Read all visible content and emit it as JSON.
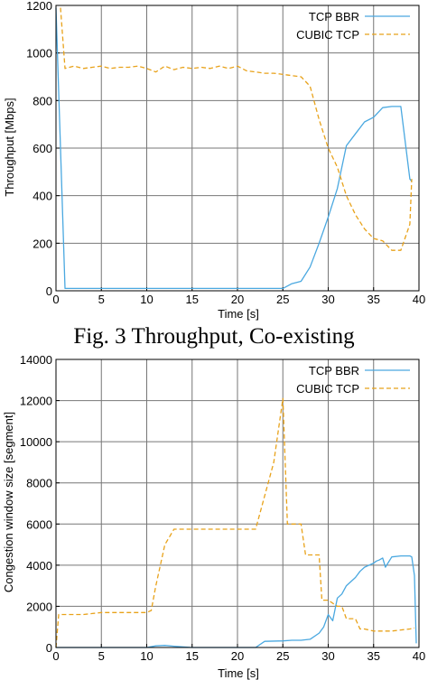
{
  "caption": "Fig. 3 Throughput, Co-existing",
  "colors": {
    "bbr": "#4aa8e0",
    "cubic": "#e8a21a",
    "grid": "#777777"
  },
  "chart_data": [
    {
      "type": "line",
      "title": "",
      "xlabel": "Time [s]",
      "ylabel": "Throughput [Mbps]",
      "xlim": [
        0,
        40
      ],
      "ylim": [
        0,
        1200
      ],
      "xticks": [
        0,
        5,
        10,
        15,
        20,
        25,
        30,
        35,
        40
      ],
      "yticks": [
        0,
        200,
        400,
        600,
        800,
        1000,
        1200
      ],
      "grid": true,
      "legend_position": "top-right",
      "series": [
        {
          "name": "TCP BBR",
          "style": "solid",
          "x": [
            0,
            1,
            2,
            5,
            10,
            15,
            20,
            24.5,
            25,
            26,
            27,
            28,
            29,
            30,
            31,
            32,
            33,
            34,
            35,
            36,
            37,
            38,
            39,
            39.2
          ],
          "y": [
            1190,
            10,
            10,
            10,
            10,
            10,
            10,
            10,
            10,
            30,
            40,
            100,
            200,
            310,
            430,
            610,
            660,
            710,
            730,
            770,
            775,
            775,
            470,
            460
          ]
        },
        {
          "name": "CUBIC TCP",
          "style": "dashed",
          "x": [
            0.5,
            1,
            2,
            3,
            4,
            5,
            6,
            7,
            8,
            9,
            10,
            11,
            12,
            13,
            14,
            15,
            16,
            17,
            18,
            19,
            20,
            21,
            22,
            23,
            24,
            25,
            26,
            27,
            28,
            29,
            30,
            31,
            32,
            33,
            34,
            35,
            36,
            37,
            38,
            39,
            39.2
          ],
          "y": [
            1190,
            935,
            945,
            935,
            940,
            945,
            935,
            940,
            940,
            945,
            935,
            920,
            945,
            930,
            940,
            935,
            940,
            935,
            945,
            935,
            945,
            925,
            920,
            915,
            915,
            910,
            905,
            900,
            860,
            720,
            600,
            520,
            400,
            320,
            260,
            220,
            210,
            170,
            170,
            280,
            470
          ]
        }
      ]
    },
    {
      "type": "line",
      "title": "",
      "xlabel": "Time [s]",
      "ylabel": "Congestion window size [segment]",
      "xlim": [
        0,
        40
      ],
      "ylim": [
        0,
        14000
      ],
      "xticks": [
        0,
        5,
        10,
        15,
        20,
        25,
        30,
        35,
        40
      ],
      "yticks": [
        0,
        2000,
        4000,
        6000,
        8000,
        10000,
        12000,
        14000
      ],
      "grid": true,
      "legend_position": "top-right",
      "series": [
        {
          "name": "TCP BBR",
          "style": "solid",
          "x": [
            0,
            5,
            10,
            11,
            12,
            13,
            15,
            20,
            22,
            23,
            25,
            26,
            27,
            28,
            29,
            29.5,
            30,
            30.5,
            31,
            31.5,
            32,
            33,
            33.5,
            34,
            35,
            35.3,
            35.6,
            36,
            36.3,
            37,
            38,
            39,
            39.2,
            39.5,
            39.7
          ],
          "y": [
            0,
            0,
            0,
            80,
            100,
            60,
            0,
            0,
            0,
            300,
            320,
            350,
            350,
            400,
            700,
            1000,
            1600,
            1300,
            2400,
            2600,
            3000,
            3400,
            3700,
            3900,
            4100,
            4200,
            4250,
            4350,
            3900,
            4400,
            4450,
            4450,
            4400,
            3500,
            200
          ]
        },
        {
          "name": "CUBIC TCP",
          "style": "dashed",
          "x": [
            0,
            0.3,
            1,
            2,
            3,
            4,
            5,
            7,
            10,
            10.5,
            11,
            12,
            13,
            15,
            20,
            22,
            24,
            25,
            25.5,
            26,
            27,
            27.5,
            28,
            29,
            29.3,
            30,
            31,
            31.5,
            32,
            33,
            33.5,
            34,
            35,
            36,
            37,
            38,
            39,
            39.5
          ],
          "y": [
            0,
            1600,
            1600,
            1600,
            1600,
            1650,
            1700,
            1700,
            1700,
            1800,
            3000,
            5000,
            5750,
            5750,
            5750,
            5750,
            9000,
            12100,
            6000,
            6000,
            6000,
            4500,
            4500,
            4500,
            2300,
            2300,
            2000,
            2000,
            1400,
            1400,
            900,
            900,
            800,
            800,
            800,
            850,
            900,
            950
          ]
        }
      ]
    }
  ]
}
